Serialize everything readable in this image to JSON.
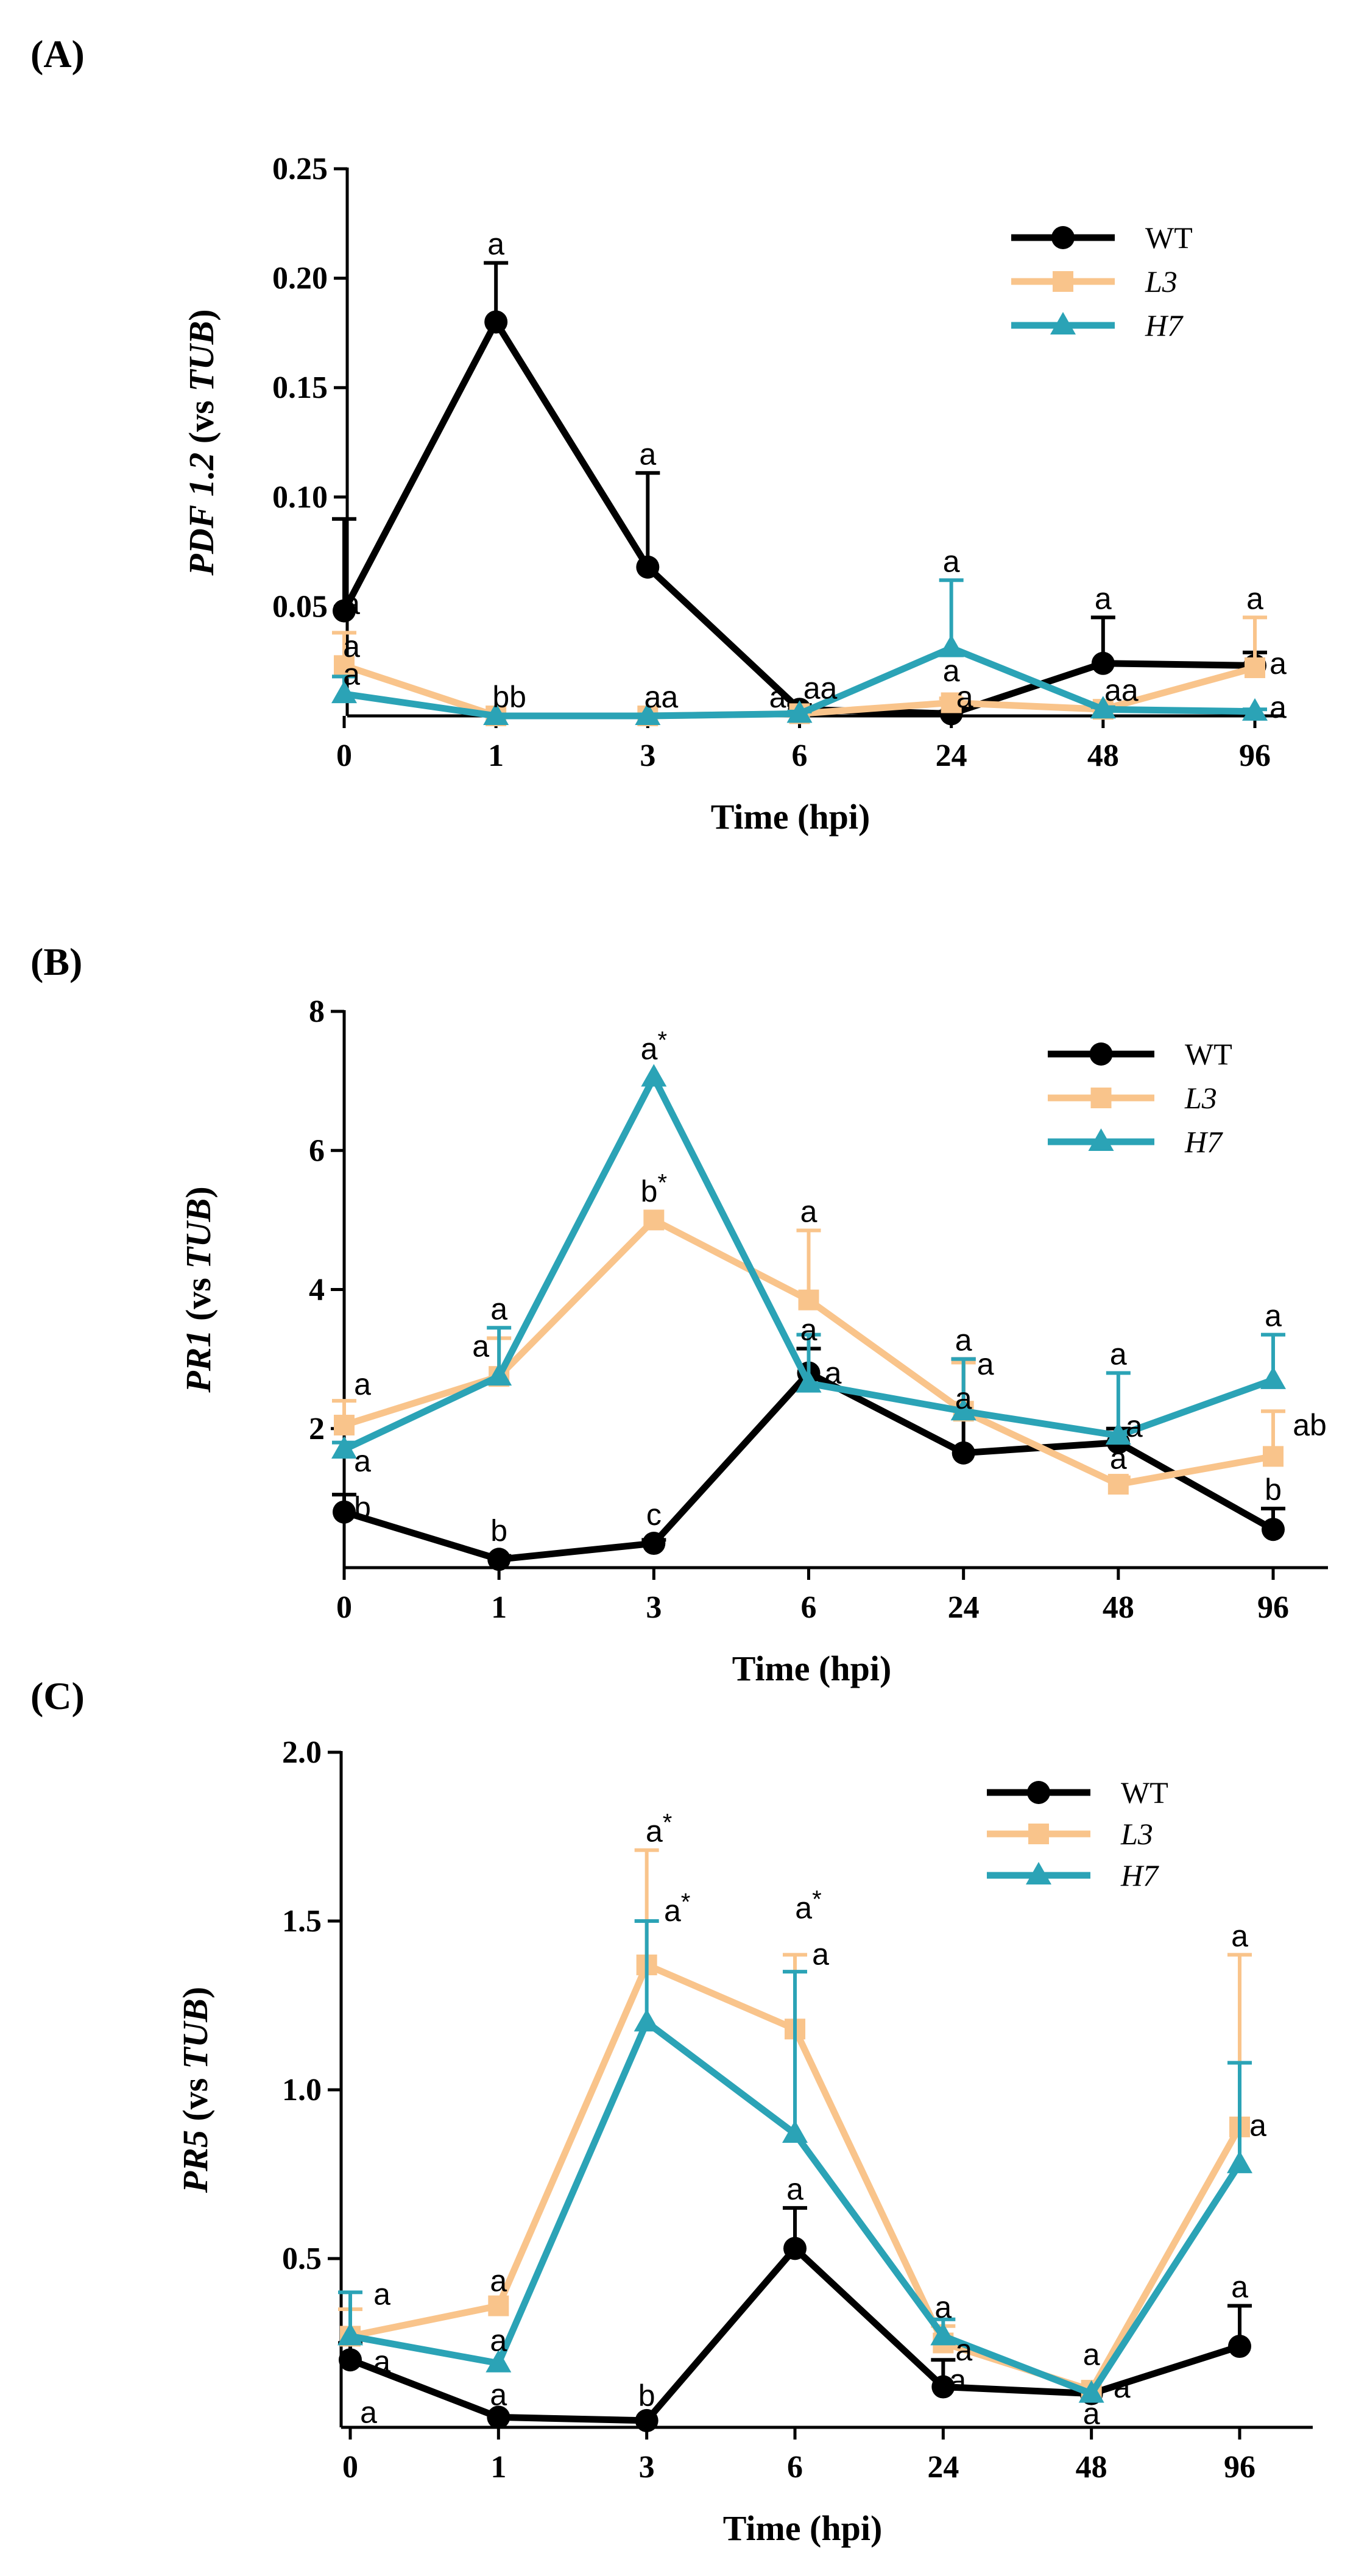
{
  "colors": {
    "WT": "#000000",
    "L3": "#f9c48b",
    "H7": "#2ba3b6"
  },
  "chart_data": [
    {
      "type": "line",
      "panel": "(A)",
      "xlabel": "Time (hpi)",
      "ylabel_gene": "PDF 1.2",
      "ylabel_rest": " (vs ",
      "ylabel_ref": "TUB",
      "ylabel_end": ")",
      "categories": [
        "0",
        "1",
        "3",
        "6",
        "24",
        "48",
        "96"
      ],
      "ylim": [
        0,
        0.25
      ],
      "yticks": [
        0.05,
        0.1,
        0.15,
        0.2,
        0.25
      ],
      "ytick_labels": [
        "0.05",
        "0.10",
        "0.15",
        "0.20",
        "0.25"
      ],
      "legend": [
        "WT",
        "L3",
        "H7"
      ],
      "series": [
        {
          "name": "WT",
          "marker": "circle",
          "values": [
            0.048,
            0.18,
            0.068,
            0.003,
            0.001,
            0.024,
            0.023
          ],
          "err": [
            0.042,
            0.027,
            0.043,
            0.002,
            0.001,
            0.021,
            0.006
          ]
        },
        {
          "name": "L3",
          "marker": "square",
          "values": [
            0.023,
            0.0,
            0.0,
            0.001,
            0.006,
            0.003,
            0.022
          ],
          "err": [
            0.015,
            0.0,
            0.0,
            0.001,
            0.002,
            0.001,
            0.023
          ]
        },
        {
          "name": "H7",
          "marker": "triangle",
          "values": [
            0.01,
            0.0,
            0.0,
            0.001,
            0.031,
            0.003,
            0.002
          ],
          "err": [
            0.008,
            0.0,
            0.0,
            0.001,
            0.031,
            0.001,
            0.001
          ]
        }
      ],
      "annotations": [
        {
          "text": "a",
          "x": 0,
          "y": 0.048,
          "dx": 12,
          "dy": 5
        },
        {
          "text": "a",
          "x": 0,
          "y": 0.027,
          "dx": 12,
          "dy": 0
        },
        {
          "text": "a",
          "x": 0,
          "y": 0.013,
          "dx": 12,
          "dy": -5
        },
        {
          "text": "a",
          "x": 1,
          "y": 0.207,
          "dx": 0,
          "dy": -14
        },
        {
          "text": "bb",
          "x": 1,
          "y": 0.0,
          "dx": 22,
          "dy": -14
        },
        {
          "text": "a",
          "x": 2,
          "y": 0.111,
          "dx": 0,
          "dy": -14
        },
        {
          "text": "aa",
          "x": 2,
          "y": 0.0,
          "dx": 22,
          "dy": -14
        },
        {
          "text": "a",
          "x": 3,
          "y": 0.0,
          "dx": -36,
          "dy": -14
        },
        {
          "text": "aa",
          "x": 3,
          "y": 0.004,
          "dx": 34,
          "dy": -14
        },
        {
          "text": "a",
          "x": 4,
          "y": 0.062,
          "dx": 0,
          "dy": -14
        },
        {
          "text": "a",
          "x": 4,
          "y": 0.012,
          "dx": 0,
          "dy": -14
        },
        {
          "text": "a",
          "x": 4,
          "y": 0.0,
          "dx": 22,
          "dy": -14
        },
        {
          "text": "a",
          "x": 5,
          "y": 0.045,
          "dx": 0,
          "dy": -14
        },
        {
          "text": "aa",
          "x": 5,
          "y": 0.003,
          "dx": 30,
          "dy": -14
        },
        {
          "text": "a",
          "x": 6,
          "y": 0.045,
          "dx": 0,
          "dy": -14
        },
        {
          "text": "a",
          "x": 6,
          "y": 0.022,
          "dx": 38,
          "dy": 10
        },
        {
          "text": "a",
          "x": 6,
          "y": 0.002,
          "dx": 38,
          "dy": 10
        }
      ]
    },
    {
      "type": "line",
      "panel": "(B)",
      "xlabel": "Time (hpi)",
      "ylabel_gene": "PR1",
      "ylabel_rest": " (vs ",
      "ylabel_ref": "TUB",
      "ylabel_end": ")",
      "categories": [
        "0",
        "1",
        "3",
        "6",
        "24",
        "48",
        "96"
      ],
      "ylim": [
        0,
        8
      ],
      "yticks": [
        2,
        4,
        6,
        8
      ],
      "ytick_labels": [
        "2",
        "4",
        "6",
        "8"
      ],
      "legend": [
        "WT",
        "L3",
        "H7"
      ],
      "series": [
        {
          "name": "WT",
          "marker": "circle",
          "values": [
            0.8,
            0.12,
            0.35,
            2.8,
            1.65,
            1.8,
            0.55
          ],
          "err": [
            0.25,
            0.05,
            0.05,
            0.35,
            1.35,
            0.2,
            0.3
          ]
        },
        {
          "name": "L3",
          "marker": "square",
          "values": [
            2.05,
            2.75,
            5.0,
            3.85,
            2.25,
            1.2,
            1.6
          ],
          "err": [
            0.35,
            0.55,
            0.0,
            1.0,
            0.7,
            0.1,
            0.65
          ]
        },
        {
          "name": "H7",
          "marker": "triangle",
          "values": [
            1.7,
            2.75,
            7.05,
            2.65,
            2.25,
            1.9,
            2.7
          ],
          "err": [
            0.1,
            0.7,
            0.0,
            0.7,
            0.75,
            0.9,
            0.65
          ]
        }
      ],
      "annotations": [
        {
          "text": "a",
          "x": 0,
          "y": 2.4,
          "dx": 30,
          "dy": -10
        },
        {
          "text": "a",
          "x": 0,
          "y": 1.7,
          "dx": 30,
          "dy": 36
        },
        {
          "text": "b",
          "x": 0,
          "y": 0.8,
          "dx": 30,
          "dy": 10
        },
        {
          "text": "a",
          "x": 1,
          "y": 3.45,
          "dx": 0,
          "dy": -14
        },
        {
          "text": "a",
          "x": 1,
          "y": 3.3,
          "dx": -30,
          "dy": 30
        },
        {
          "text": "b",
          "x": 1,
          "y": 0.12,
          "dx": 0,
          "dy": -30
        },
        {
          "text": "a*",
          "x": 2,
          "y": 7.05,
          "dx": 0,
          "dy": -30
        },
        {
          "text": "b*",
          "x": 2,
          "y": 5.0,
          "dx": 0,
          "dy": -30
        },
        {
          "text": "c",
          "x": 2,
          "y": 0.35,
          "dx": 0,
          "dy": -30
        },
        {
          "text": "a",
          "x": 3,
          "y": 4.85,
          "dx": 0,
          "dy": -14
        },
        {
          "text": "a",
          "x": 3,
          "y": 3.15,
          "dx": 0,
          "dy": -14
        },
        {
          "text": "a",
          "x": 3,
          "y": 2.65,
          "dx": 40,
          "dy": 0
        },
        {
          "text": "a",
          "x": 4,
          "y": 3.0,
          "dx": 0,
          "dy": -14
        },
        {
          "text": "a",
          "x": 4,
          "y": 2.9,
          "dx": 36,
          "dy": 14
        },
        {
          "text": "a",
          "x": 4,
          "y": 2.25,
          "dx": 0,
          "dy": -4
        },
        {
          "text": "a",
          "x": 5,
          "y": 2.8,
          "dx": 0,
          "dy": -14
        },
        {
          "text": "a",
          "x": 5,
          "y": 1.9,
          "dx": 26,
          "dy": 2
        },
        {
          "text": "a",
          "x": 5,
          "y": 1.3,
          "dx": 0,
          "dy": -14
        },
        {
          "text": "a",
          "x": 6,
          "y": 3.35,
          "dx": 0,
          "dy": -14
        },
        {
          "text": "ab",
          "x": 6,
          "y": 1.9,
          "dx": 60,
          "dy": 0
        },
        {
          "text": "b",
          "x": 6,
          "y": 0.85,
          "dx": 0,
          "dy": -14
        }
      ]
    },
    {
      "type": "line",
      "panel": "(C)",
      "xlabel": "Time (hpi)",
      "ylabel_gene": "PR5",
      "ylabel_rest": " (vs ",
      "ylabel_ref": "TUB",
      "ylabel_end": ")",
      "categories": [
        "0",
        "1",
        "3",
        "6",
        "24",
        "48",
        "96"
      ],
      "ylim": [
        0,
        2.0
      ],
      "yticks": [
        0.5,
        1.0,
        1.5,
        2.0
      ],
      "ytick_labels": [
        "0.5",
        "1.0",
        "1.5",
        "2.0"
      ],
      "legend": [
        "WT",
        "L3",
        "H7"
      ],
      "series": [
        {
          "name": "WT",
          "marker": "circle",
          "values": [
            0.2,
            0.03,
            0.02,
            0.53,
            0.12,
            0.1,
            0.24
          ],
          "err": [
            0.05,
            0.0,
            0.0,
            0.12,
            0.08,
            0.0,
            0.12
          ]
        },
        {
          "name": "L3",
          "marker": "square",
          "values": [
            0.27,
            0.36,
            1.37,
            1.18,
            0.25,
            0.11,
            0.89
          ],
          "err": [
            0.08,
            0.0,
            0.34,
            0.22,
            0.05,
            0.0,
            0.51
          ]
        },
        {
          "name": "H7",
          "marker": "triangle",
          "values": [
            0.27,
            0.19,
            1.2,
            0.87,
            0.27,
            0.1,
            0.78
          ],
          "err": [
            0.13,
            0.0,
            0.3,
            0.48,
            0.05,
            0.0,
            0.3
          ]
        }
      ],
      "annotations": [
        {
          "text": "a",
          "x": 0,
          "y": 0.4,
          "dx": 52,
          "dy": 20
        },
        {
          "text": "a",
          "x": 0,
          "y": 0.2,
          "dx": 52,
          "dy": 20
        },
        {
          "text": "a",
          "x": 0,
          "y": 0.05,
          "dx": 30,
          "dy": 20
        },
        {
          "text": "a",
          "x": 1,
          "y": 0.36,
          "dx": 0,
          "dy": -24
        },
        {
          "text": "a",
          "x": 1,
          "y": 0.19,
          "dx": 0,
          "dy": -20
        },
        {
          "text": "a",
          "x": 1,
          "y": 0.03,
          "dx": 0,
          "dy": -20
        },
        {
          "text": "a*",
          "x": 2,
          "y": 1.71,
          "dx": 20,
          "dy": -14
        },
        {
          "text": "a*",
          "x": 2,
          "y": 1.5,
          "dx": 50,
          "dy": 0
        },
        {
          "text": "b",
          "x": 2,
          "y": 0.02,
          "dx": 0,
          "dy": -24
        },
        {
          "text": "a*",
          "x": 3,
          "y": 1.4,
          "dx": 22,
          "dy": -60
        },
        {
          "text": "a",
          "x": 3,
          "y": 1.4,
          "dx": 42,
          "dy": 16
        },
        {
          "text": "a",
          "x": 3,
          "y": 0.65,
          "dx": 0,
          "dy": -14
        },
        {
          "text": "a",
          "x": 3,
          "y": 0.53,
          "dx": 0,
          "dy": 10
        },
        {
          "text": "a",
          "x": 4,
          "y": 0.3,
          "dx": 0,
          "dy": -14
        },
        {
          "text": "a",
          "x": 4,
          "y": 0.22,
          "dx": 34,
          "dy": 12
        },
        {
          "text": "a",
          "x": 4,
          "y": 0.12,
          "dx": 24,
          "dy": 6
        },
        {
          "text": "a",
          "x": 5,
          "y": 0.16,
          "dx": 0,
          "dy": -14
        },
        {
          "text": "a",
          "x": 5,
          "y": 0.11,
          "dx": 50,
          "dy": 12
        },
        {
          "text": "a",
          "x": 5,
          "y": 0.1,
          "dx": 0,
          "dy": 50
        },
        {
          "text": "a",
          "x": 6,
          "y": 1.4,
          "dx": 0,
          "dy": -14
        },
        {
          "text": "a",
          "x": 6,
          "y": 0.9,
          "dx": 30,
          "dy": 20
        },
        {
          "text": "a",
          "x": 6,
          "y": 0.36,
          "dx": 0,
          "dy": -14
        }
      ]
    }
  ]
}
